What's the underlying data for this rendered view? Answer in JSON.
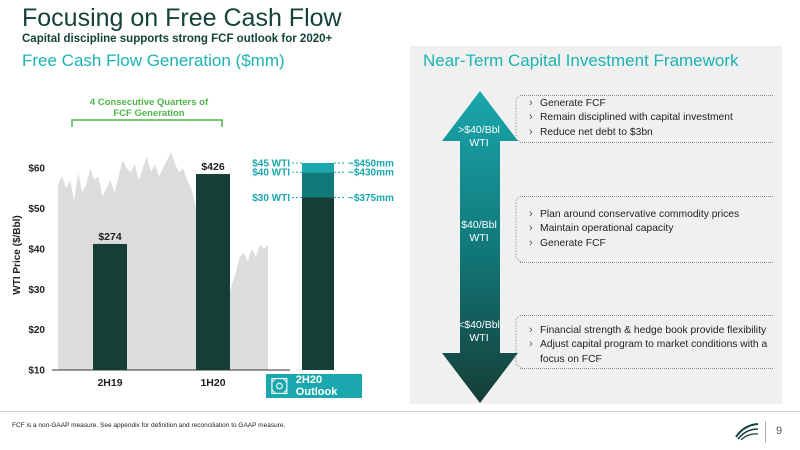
{
  "header": {
    "title": "Focusing on Free Cash Flow",
    "subtitle": "Capital discipline supports strong FCF outlook for 2020+"
  },
  "left_section": {
    "title": "Free Cash Flow Generation ($mm)",
    "bracket_label_line1": "4 Consecutive Quarters of",
    "bracket_label_line2": "FCF Generation",
    "outlook_label": "2H20 Outlook"
  },
  "right_section": {
    "title": "Near-Term Capital Investment Framework",
    "tiers": [
      {
        "price_line1": ">$40/Bbl",
        "price_line2": "WTI",
        "bullets": [
          "Generate FCF",
          "Remain disciplined with capital investment",
          "Reduce net debt to $3bn"
        ]
      },
      {
        "price_line1": "$40/Bbl",
        "price_line2": "WTI",
        "bullets": [
          "Plan around conservative commodity prices",
          "Maintain operational capacity",
          "Generate FCF"
        ]
      },
      {
        "price_line1": "<$40/Bbl",
        "price_line2": "WTI",
        "bullets": [
          "Financial strength & hedge book provide flexibility",
          "Adjust capital program to market conditions with a",
          "focus on FCF"
        ]
      }
    ]
  },
  "footer": {
    "footnote": "FCF is a non-GAAP measure. See appendix for definition and reconciliation to GAAP measure.",
    "page_number": "9"
  },
  "colors": {
    "dark_green": "#163d36",
    "teal": "#1aa7ad",
    "mid_teal": "#11797a",
    "grey_area": "#dcdcdc"
  },
  "chart_data": {
    "type": "bar",
    "categories": [
      "2H19",
      "1H20"
    ],
    "values": [
      274,
      426
    ],
    "value_labels": [
      "$274",
      "$426"
    ],
    "ylabel": "WTI Price ($/Bbl)",
    "y_ticks": [
      "$10",
      "$20",
      "$30",
      "$40",
      "$50",
      "$60"
    ],
    "y_tick_values": [
      10,
      20,
      30,
      40,
      50,
      60
    ],
    "ylim": [
      10,
      67
    ],
    "outlook": {
      "category": "2H20 Outlook",
      "scenarios": [
        {
          "wti_label": "$30 WTI",
          "wti": 30,
          "fcf_label": "~$375mm",
          "fcf": 375
        },
        {
          "wti_label": "$40 WTI",
          "wti": 40,
          "fcf_label": "~$430mm",
          "fcf": 430
        },
        {
          "wti_label": "$45 WTI",
          "wti": 45,
          "fcf_label": "~$450mm",
          "fcf": 450
        }
      ]
    },
    "wti_series": [
      56,
      58,
      55,
      57,
      52,
      59,
      54,
      56,
      60,
      57,
      58,
      53,
      55,
      57,
      54,
      58,
      62,
      60,
      59,
      61,
      57,
      60,
      63,
      59,
      61,
      58,
      60,
      62,
      64,
      61,
      59,
      60,
      57,
      55,
      51,
      46,
      42,
      36,
      30,
      24,
      20,
      22,
      27,
      31,
      34,
      38,
      39,
      37,
      40,
      38,
      41,
      40,
      41
    ]
  }
}
